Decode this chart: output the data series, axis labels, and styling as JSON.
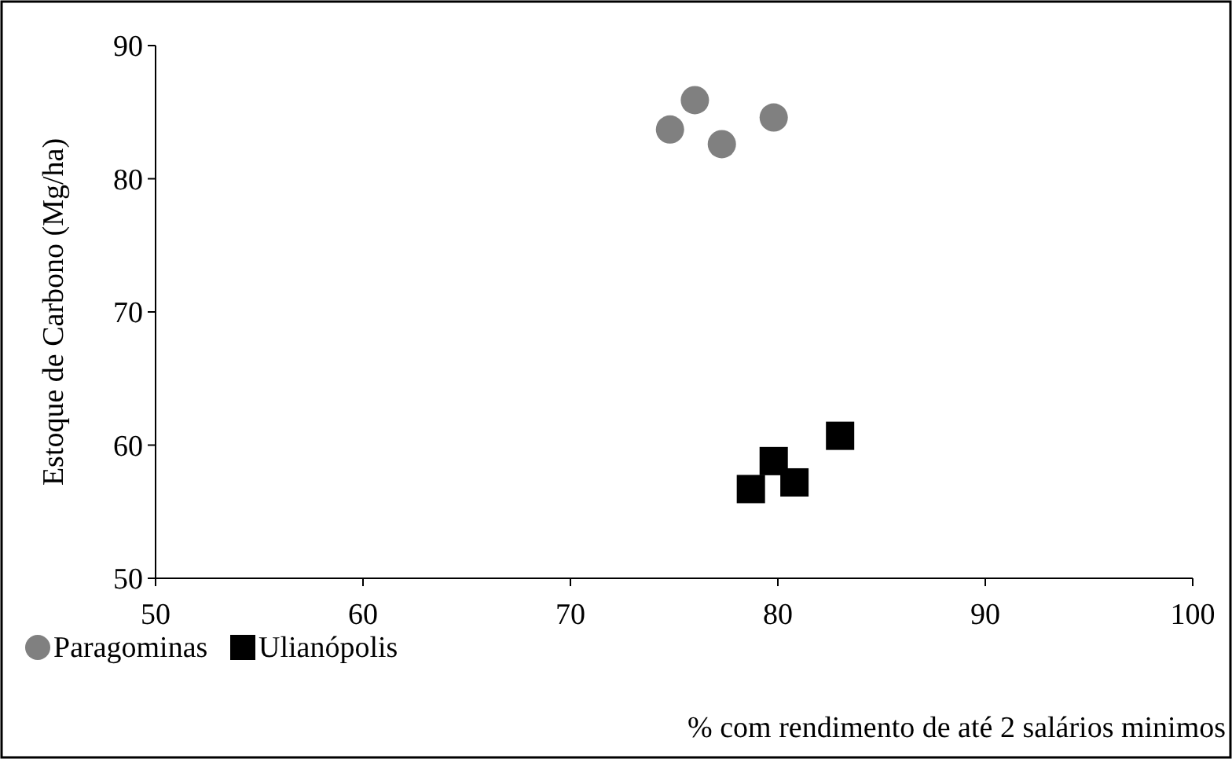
{
  "chart_data": {
    "type": "scatter",
    "xlabel": "% com rendimento de até 2 salários minimos",
    "ylabel": "Estoque de Carbono (Mg/ha)",
    "xlim": [
      50,
      100
    ],
    "xticks": [
      50,
      60,
      70,
      80,
      90,
      100
    ],
    "ylim": [
      50,
      90
    ],
    "yticks": [
      50,
      60,
      70,
      80,
      90
    ],
    "legend": "bottom left",
    "grid": false,
    "series": [
      {
        "name": "Paragominas",
        "color": "#808080",
        "marker": "circle",
        "x": [
          74.8,
          76.0,
          77.3,
          79.8
        ],
        "values": [
          83.7,
          85.9,
          82.6,
          84.6
        ]
      },
      {
        "name": "Ulianópolis",
        "color": "#000000",
        "marker": "square",
        "x": [
          78.7,
          79.8,
          80.8,
          83.0
        ],
        "values": [
          56.7,
          58.8,
          57.2,
          60.7
        ]
      }
    ]
  }
}
